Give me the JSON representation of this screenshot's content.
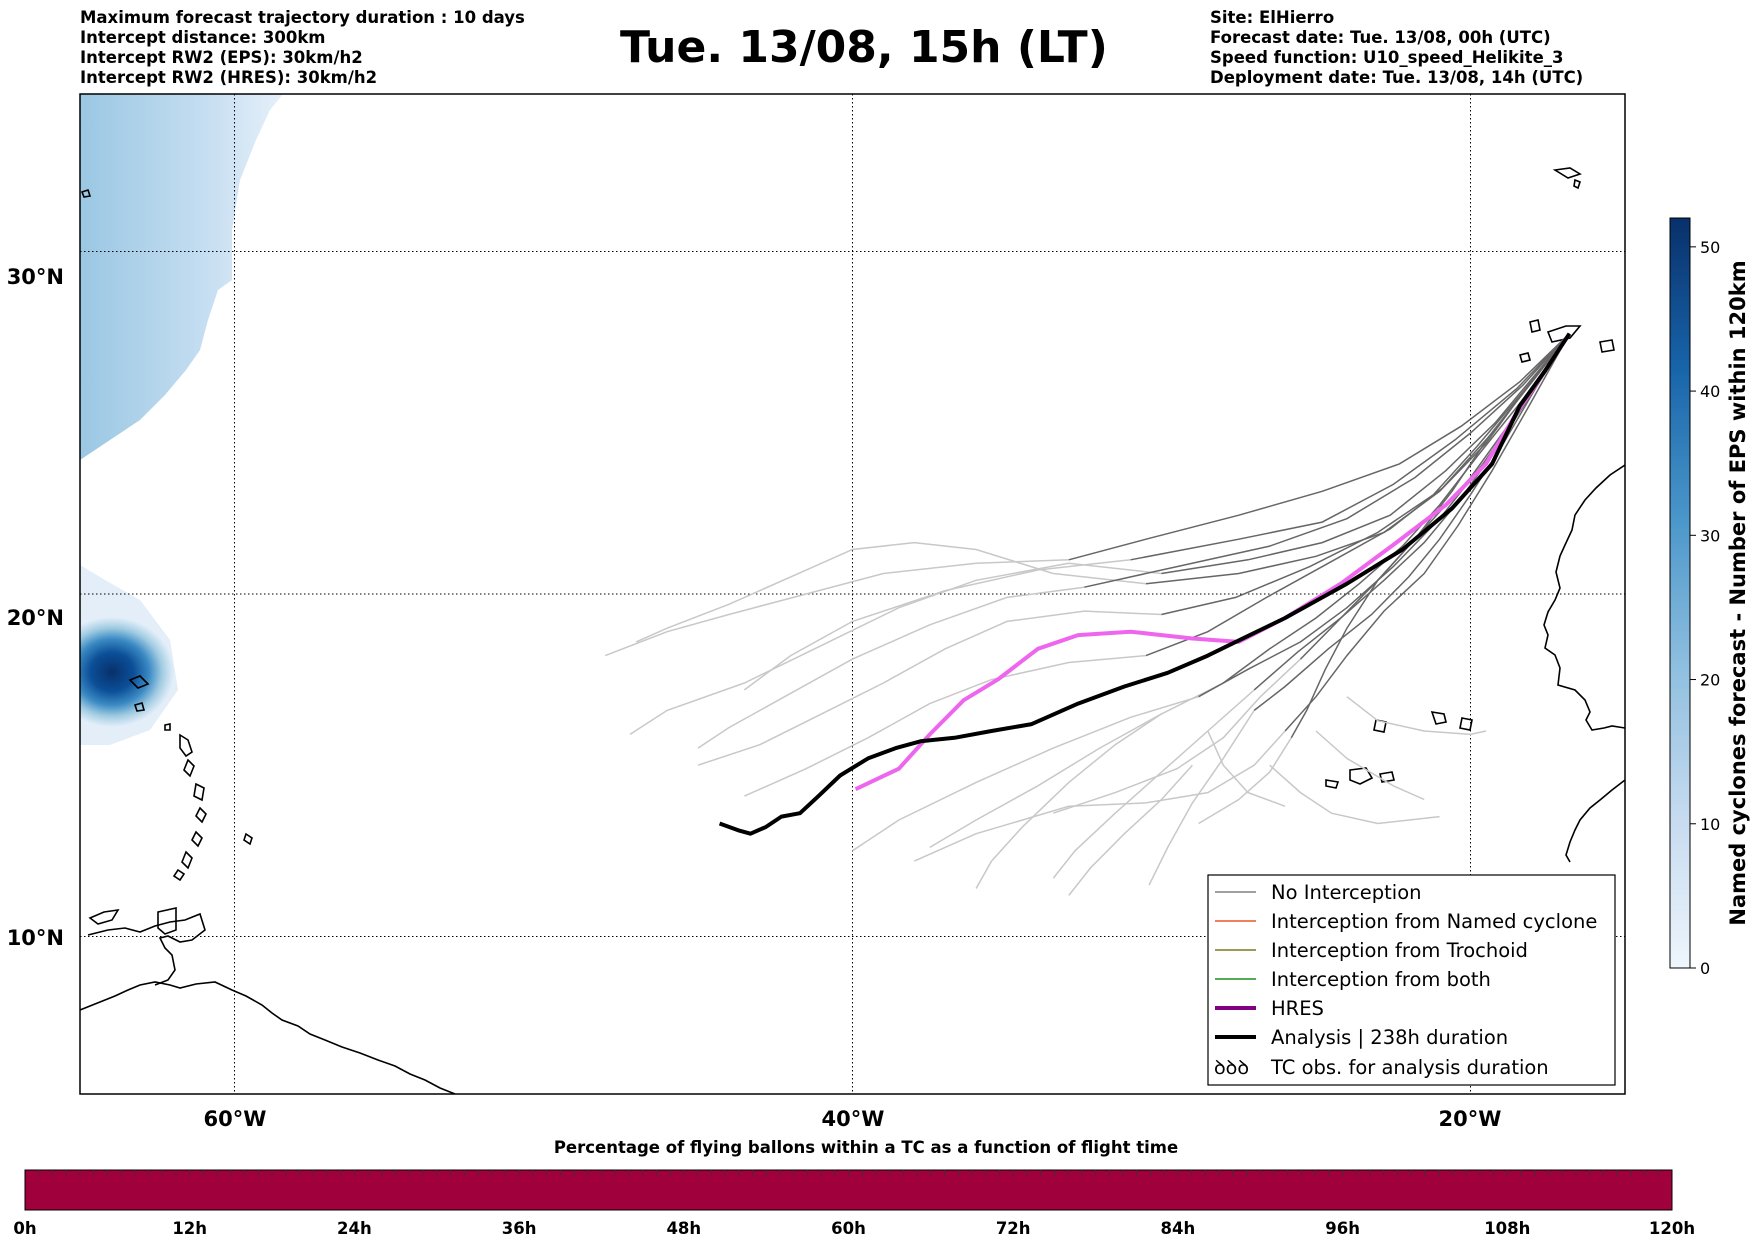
{
  "header_left": [
    "Maximum forecast trajectory duration : 10 days",
    "Intercept distance: 300km",
    "Intercept RW2 (EPS):  30km/h2",
    "Intercept RW2 (HRES): 30km/h2"
  ],
  "header_right": [
    "Site: ElHierro",
    "Forecast date: Tue. 13/08, 00h (UTC)",
    "Speed function: U10_speed_Helikite_3",
    "Deployment date: Tue. 13/08, 14h (UTC)"
  ],
  "title": "Tue. 13/08, 15h (LT)",
  "map": {
    "lon_labels": [
      "60°W",
      "40°W",
      "20°W"
    ],
    "lat_labels": [
      "30°N",
      "20°N",
      "10°N"
    ],
    "grid_lons": [
      -60,
      -40,
      -20
    ],
    "grid_lats": [
      30,
      20,
      10
    ],
    "lon_range": [
      -65,
      -15
    ],
    "lat_range": [
      5.4,
      34.6
    ]
  },
  "colorbar_right": {
    "label": "Named cyclones forecast - Number of EPS within 120km",
    "ticks": [
      "0",
      "10",
      "20",
      "30",
      "40",
      "50"
    ],
    "tick_values": [
      0,
      10,
      20,
      30,
      40,
      50
    ],
    "range": [
      0,
      52
    ],
    "color_low": "#e8f1fb",
    "color_high": "#08306b"
  },
  "legend": {
    "items": [
      {
        "label": "No Interception",
        "color": "#808080",
        "width": 1.5
      },
      {
        "label": "Interception from Named cyclone",
        "color": "#e8552a",
        "width": 1.5
      },
      {
        "label": "Interception from Trochoid",
        "color": "#7a7a1a",
        "width": 1.5
      },
      {
        "label": "Interception from both",
        "color": "#1f8f1f",
        "width": 1.5
      },
      {
        "label": "HRES",
        "color": "#800080",
        "width": 4
      },
      {
        "label": "Analysis | 238h duration",
        "color": "#000000",
        "width": 4
      },
      {
        "label": "TC obs. for analysis duration",
        "symbol": "ꝺꝺꝺ"
      }
    ]
  },
  "trajectories": {
    "hres_color": "#ee66ee",
    "analysis_color": "#000000",
    "eps_early_color": "#666666",
    "eps_late_color": "#c8c8c8",
    "hres": [
      [
        -16.8,
        27.6
      ],
      [
        -17.6,
        26.5
      ],
      [
        -18.5,
        25.3
      ],
      [
        -19.5,
        23.8
      ],
      [
        -20.8,
        22.6
      ],
      [
        -22.4,
        21.5
      ],
      [
        -24.2,
        20.3
      ],
      [
        -26.0,
        19.3
      ],
      [
        -27.5,
        18.6
      ],
      [
        -29.0,
        18.7
      ],
      [
        -31.0,
        18.9
      ],
      [
        -32.7,
        18.8
      ],
      [
        -34.0,
        18.4
      ],
      [
        -35.3,
        17.5
      ],
      [
        -36.4,
        16.9
      ],
      [
        -37.5,
        15.9
      ],
      [
        -38.5,
        14.9
      ],
      [
        -39.2,
        14.6
      ],
      [
        -39.9,
        14.3
      ]
    ],
    "analysis": [
      [
        -16.8,
        27.6
      ],
      [
        -17.6,
        26.5
      ],
      [
        -18.4,
        25.5
      ],
      [
        -19.3,
        23.8
      ],
      [
        -20.6,
        22.5
      ],
      [
        -22.2,
        21.3
      ],
      [
        -24.0,
        20.3
      ],
      [
        -26.0,
        19.3
      ],
      [
        -27.6,
        18.6
      ],
      [
        -28.5,
        18.2
      ],
      [
        -29.8,
        17.7
      ],
      [
        -31.2,
        17.3
      ],
      [
        -32.7,
        16.8
      ],
      [
        -34.2,
        16.2
      ],
      [
        -35.5,
        16.0
      ],
      [
        -36.7,
        15.8
      ],
      [
        -37.8,
        15.7
      ],
      [
        -38.6,
        15.5
      ],
      [
        -39.5,
        15.2
      ],
      [
        -40.4,
        14.7
      ],
      [
        -41.1,
        14.1
      ],
      [
        -41.7,
        13.6
      ],
      [
        -42.3,
        13.5
      ],
      [
        -42.8,
        13.2
      ],
      [
        -43.3,
        13.0
      ],
      [
        -43.7,
        13.1
      ],
      [
        -44.3,
        13.3
      ]
    ],
    "eps_early": [
      [
        [
          -16.8,
          27.6
        ],
        [
          -18.2,
          26.0
        ],
        [
          -19.5,
          24.4
        ],
        [
          -21.0,
          23.0
        ],
        [
          -22.8,
          21.8
        ],
        [
          -25.0,
          21.1
        ],
        [
          -27.5,
          20.6
        ],
        [
          -30.5,
          20.3
        ]
      ],
      [
        [
          -16.8,
          27.6
        ],
        [
          -18.0,
          26.3
        ],
        [
          -19.2,
          25.0
        ],
        [
          -20.8,
          23.6
        ],
        [
          -22.6,
          22.3
        ],
        [
          -24.8,
          21.5
        ],
        [
          -27.2,
          21.0
        ],
        [
          -30.0,
          20.6
        ]
      ],
      [
        [
          -16.8,
          27.6
        ],
        [
          -18.3,
          25.9
        ],
        [
          -19.8,
          24.3
        ],
        [
          -21.2,
          22.9
        ],
        [
          -23.0,
          21.8
        ],
        [
          -25.2,
          20.8
        ],
        [
          -27.6,
          19.9
        ],
        [
          -30.0,
          19.4
        ]
      ],
      [
        [
          -16.8,
          27.6
        ],
        [
          -18.1,
          26.1
        ],
        [
          -19.4,
          24.6
        ],
        [
          -20.9,
          23.1
        ],
        [
          -22.6,
          21.9
        ],
        [
          -24.6,
          20.9
        ],
        [
          -26.6,
          19.9
        ],
        [
          -28.5,
          18.9
        ],
        [
          -30.5,
          18.2
        ]
      ],
      [
        [
          -16.8,
          27.6
        ],
        [
          -18.2,
          25.8
        ],
        [
          -19.8,
          24.0
        ],
        [
          -21.0,
          22.6
        ],
        [
          -22.2,
          21.4
        ],
        [
          -23.6,
          20.3
        ],
        [
          -25.0,
          19.3
        ],
        [
          -26.5,
          18.4
        ],
        [
          -28.0,
          17.4
        ]
      ],
      [
        [
          -16.8,
          27.6
        ],
        [
          -18.0,
          25.9
        ],
        [
          -19.2,
          24.2
        ],
        [
          -20.3,
          22.8
        ],
        [
          -21.5,
          21.5
        ],
        [
          -22.8,
          20.4
        ],
        [
          -24.2,
          19.3
        ],
        [
          -25.6,
          18.3
        ],
        [
          -27.0,
          17.2
        ]
      ],
      [
        [
          -16.8,
          27.6
        ],
        [
          -17.9,
          26.0
        ],
        [
          -19.0,
          24.3
        ],
        [
          -20.0,
          22.9
        ],
        [
          -21.0,
          21.6
        ],
        [
          -22.0,
          20.5
        ],
        [
          -23.2,
          19.4
        ],
        [
          -24.6,
          18.4
        ],
        [
          -26.0,
          17.3
        ],
        [
          -27.0,
          16.6
        ]
      ],
      [
        [
          -16.8,
          27.6
        ],
        [
          -18.4,
          25.4
        ],
        [
          -20.0,
          23.4
        ],
        [
          -21.6,
          21.8
        ],
        [
          -23.0,
          20.4
        ],
        [
          -24.3,
          19.2
        ],
        [
          -25.5,
          18.1
        ]
      ],
      [
        [
          -16.8,
          27.6
        ],
        [
          -18.3,
          26.1
        ],
        [
          -20.0,
          24.7
        ],
        [
          -21.8,
          23.4
        ],
        [
          -24.0,
          22.2
        ],
        [
          -26.5,
          21.4
        ],
        [
          -29.5,
          20.8
        ],
        [
          -32.5,
          20.2
        ]
      ],
      [
        [
          -16.8,
          27.6
        ],
        [
          -18.0,
          26.2
        ],
        [
          -19.4,
          24.6
        ],
        [
          -20.6,
          23.0
        ],
        [
          -21.8,
          21.6
        ],
        [
          -23.0,
          20.4
        ],
        [
          -24.0,
          19.0
        ],
        [
          -24.7,
          17.8
        ],
        [
          -25.3,
          16.6
        ],
        [
          -25.8,
          15.8
        ]
      ],
      [
        [
          -16.8,
          27.6
        ],
        [
          -18.5,
          26.0
        ],
        [
          -20.5,
          24.5
        ],
        [
          -22.5,
          23.2
        ],
        [
          -24.8,
          22.1
        ],
        [
          -27.5,
          21.6
        ],
        [
          -31.0,
          21.0
        ]
      ],
      [
        [
          -16.8,
          27.6
        ],
        [
          -18.2,
          25.6
        ],
        [
          -19.6,
          23.8
        ],
        [
          -21.0,
          22.2
        ],
        [
          -22.5,
          20.8
        ],
        [
          -24.0,
          19.6
        ],
        [
          -25.5,
          18.6
        ],
        [
          -27.2,
          17.8
        ],
        [
          -28.8,
          17.0
        ]
      ],
      [
        [
          -16.8,
          27.6
        ],
        [
          -18.1,
          25.5
        ],
        [
          -19.3,
          23.6
        ],
        [
          -20.4,
          22.0
        ],
        [
          -21.5,
          20.6
        ],
        [
          -22.8,
          19.5
        ],
        [
          -24.0,
          18.2
        ],
        [
          -25.0,
          17.0
        ],
        [
          -26.0,
          16.0
        ]
      ],
      [
        [
          -16.8,
          27.6
        ],
        [
          -18.4,
          26.2
        ],
        [
          -20.3,
          24.9
        ],
        [
          -22.3,
          23.8
        ],
        [
          -24.8,
          23.0
        ],
        [
          -27.5,
          22.3
        ],
        [
          -30.5,
          21.6
        ],
        [
          -33.0,
          21.0
        ]
      ]
    ],
    "eps_late": [
      [
        [
          -30.5,
          20.3
        ],
        [
          -33.5,
          20.6
        ],
        [
          -36.0,
          21.3
        ],
        [
          -38.0,
          21.5
        ],
        [
          -40.0,
          21.3
        ],
        [
          -42.0,
          20.5
        ],
        [
          -44.0,
          19.7
        ],
        [
          -46.0,
          19.0
        ],
        [
          -47.0,
          18.6
        ]
      ],
      [
        [
          -30.0,
          20.6
        ],
        [
          -33.0,
          20.9
        ],
        [
          -36.0,
          20.4
        ],
        [
          -38.5,
          19.6
        ],
        [
          -41.0,
          18.5
        ],
        [
          -43.5,
          17.4
        ],
        [
          -46.0,
          16.6
        ],
        [
          -47.2,
          15.9
        ]
      ],
      [
        [
          -30.0,
          19.4
        ],
        [
          -32.5,
          19.5
        ],
        [
          -35.0,
          19.2
        ],
        [
          -37.0,
          18.4
        ],
        [
          -39.0,
          17.4
        ],
        [
          -41.0,
          16.5
        ],
        [
          -43.0,
          15.6
        ],
        [
          -45.0,
          15.0
        ]
      ],
      [
        [
          -30.5,
          18.2
        ],
        [
          -33.0,
          18.0
        ],
        [
          -35.5,
          17.5
        ],
        [
          -37.5,
          16.8
        ],
        [
          -39.5,
          15.8
        ],
        [
          -41.5,
          14.9
        ],
        [
          -43.5,
          14.1
        ]
      ],
      [
        [
          -28.0,
          17.4
        ],
        [
          -30.0,
          16.5
        ],
        [
          -32.0,
          15.5
        ],
        [
          -34.0,
          14.4
        ],
        [
          -36.0,
          13.4
        ],
        [
          -37.5,
          12.6
        ]
      ],
      [
        [
          -27.0,
          17.2
        ],
        [
          -28.5,
          16.0
        ],
        [
          -30.0,
          14.8
        ],
        [
          -31.5,
          13.6
        ],
        [
          -32.8,
          12.5
        ],
        [
          -33.5,
          11.7
        ]
      ],
      [
        [
          -27.0,
          16.6
        ],
        [
          -28.0,
          15.2
        ],
        [
          -29.0,
          13.9
        ],
        [
          -29.8,
          12.6
        ],
        [
          -30.4,
          11.5
        ]
      ],
      [
        [
          -25.5,
          18.1
        ],
        [
          -26.8,
          17.0
        ],
        [
          -28.0,
          15.8
        ],
        [
          -29.5,
          14.9
        ],
        [
          -31.5,
          14.2
        ],
        [
          -33.5,
          13.6
        ]
      ],
      [
        [
          -32.5,
          20.2
        ],
        [
          -35.0,
          19.9
        ],
        [
          -37.5,
          19.1
        ],
        [
          -40.0,
          18.1
        ],
        [
          -42.0,
          17.1
        ],
        [
          -44.0,
          16.1
        ],
        [
          -45.0,
          15.5
        ]
      ],
      [
        [
          -25.8,
          15.8
        ],
        [
          -26.5,
          14.8
        ],
        [
          -27.5,
          14.0
        ],
        [
          -28.8,
          13.3
        ]
      ],
      [
        [
          -31.0,
          21.0
        ],
        [
          -34.0,
          20.7
        ],
        [
          -37.0,
          20.1
        ],
        [
          -40.0,
          19.2
        ],
        [
          -42.0,
          18.2
        ],
        [
          -43.5,
          17.2
        ]
      ],
      [
        [
          -28.8,
          17.0
        ],
        [
          -31.0,
          16.4
        ],
        [
          -33.5,
          15.5
        ],
        [
          -36.0,
          14.5
        ],
        [
          -38.5,
          13.4
        ],
        [
          -40.0,
          12.5
        ]
      ],
      [
        [
          -26.0,
          16.0
        ],
        [
          -27.0,
          15.0
        ],
        [
          -28.5,
          14.2
        ],
        [
          -30.5,
          13.9
        ],
        [
          -33.0,
          13.8
        ],
        [
          -36.0,
          13.0
        ],
        [
          -38.0,
          12.2
        ]
      ],
      [
        [
          -33.0,
          21.0
        ],
        [
          -36.0,
          20.9
        ],
        [
          -39.0,
          20.6
        ],
        [
          -41.5,
          20.0
        ],
        [
          -44.0,
          19.4
        ],
        [
          -46.0,
          18.9
        ],
        [
          -48.0,
          18.2
        ]
      ],
      [
        [
          -24.0,
          17.0
        ],
        [
          -23.0,
          16.3
        ],
        [
          -21.5,
          16.0
        ],
        [
          -20.0,
          15.9
        ],
        [
          -19.5,
          16.0
        ]
      ],
      [
        [
          -25.0,
          16.0
        ],
        [
          -24.0,
          15.2
        ],
        [
          -22.5,
          14.4
        ],
        [
          -21.5,
          14.0
        ]
      ],
      [
        [
          -26.5,
          15.0
        ],
        [
          -25.5,
          14.2
        ],
        [
          -24.5,
          13.6
        ],
        [
          -23.0,
          13.3
        ],
        [
          -21.0,
          13.5
        ]
      ],
      [
        [
          -28.5,
          16.0
        ],
        [
          -28.0,
          15.0
        ],
        [
          -27.2,
          14.2
        ],
        [
          -26.0,
          13.8
        ]
      ],
      [
        [
          -29.0,
          15.0
        ],
        [
          -30.0,
          14.0
        ],
        [
          -31.2,
          13.0
        ],
        [
          -32.3,
          12.0
        ],
        [
          -33.0,
          11.2
        ]
      ],
      [
        [
          -30.0,
          16.5
        ],
        [
          -31.5,
          15.6
        ],
        [
          -33.0,
          14.5
        ],
        [
          -34.5,
          13.2
        ],
        [
          -35.5,
          12.2
        ],
        [
          -36.0,
          11.4
        ]
      ]
    ]
  },
  "timeline": {
    "title": "Percentage of flying ballons within a TC as a function of flight time",
    "color": "#a0003c",
    "labels": [
      "0h",
      "12h",
      "24h",
      "36h",
      "48h",
      "60h",
      "72h",
      "84h",
      "96h",
      "108h",
      "120h"
    ]
  }
}
